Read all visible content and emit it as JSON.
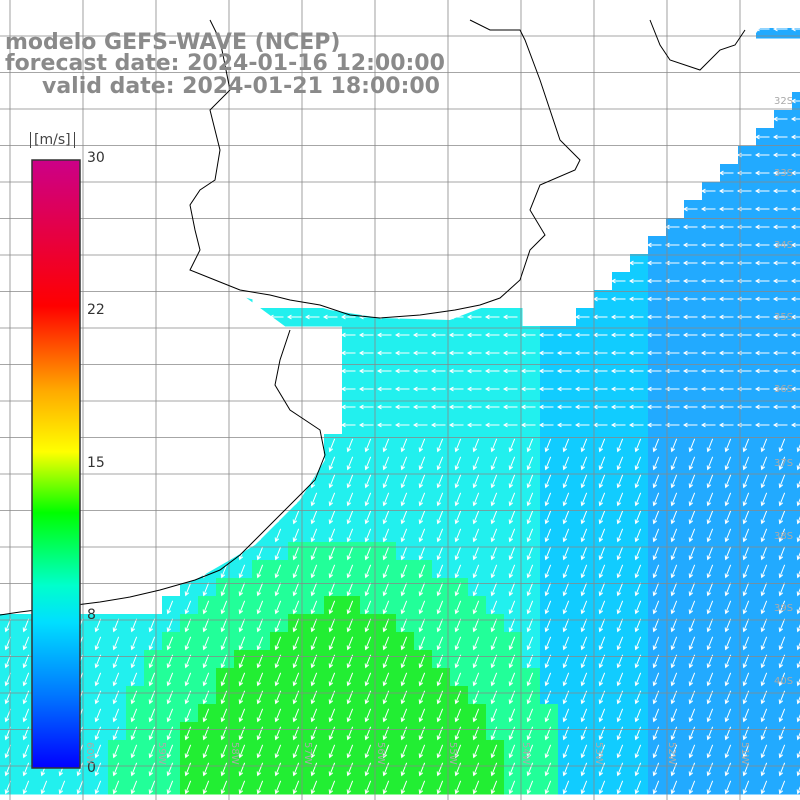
{
  "title": {
    "model": "modelo GEFS-WAVE (NCEP)",
    "forecast": "forecast date: 2024-01-16 12:00:00",
    "valid": "valid date: 2024-01-21 18:00:00"
  },
  "colorbar": {
    "unit": "[m/s]",
    "ticks": [
      "30",
      "22",
      "15",
      "8",
      "0"
    ],
    "tick_values": [
      30,
      22,
      15,
      8,
      0
    ],
    "range": [
      0,
      30
    ],
    "colors": [
      "#0000ff",
      "#00aaff",
      "#00ffff",
      "#00ff00",
      "#ffff00",
      "#ff8800",
      "#ff0000",
      "#cc0077"
    ]
  },
  "map": {
    "variable": "wind speed",
    "land_color": "#ffffff",
    "grid_color": "#888888",
    "arrow_color": "#ffffff",
    "lat_labels": [
      "32S",
      "33S",
      "34S",
      "35S",
      "36S",
      "37S",
      "38S",
      "39S",
      "40S"
    ],
    "lon_labels": [
      "60W",
      "59W",
      "58W",
      "57W",
      "56W",
      "55W",
      "54W",
      "53W",
      "52W",
      "51W"
    ]
  }
}
